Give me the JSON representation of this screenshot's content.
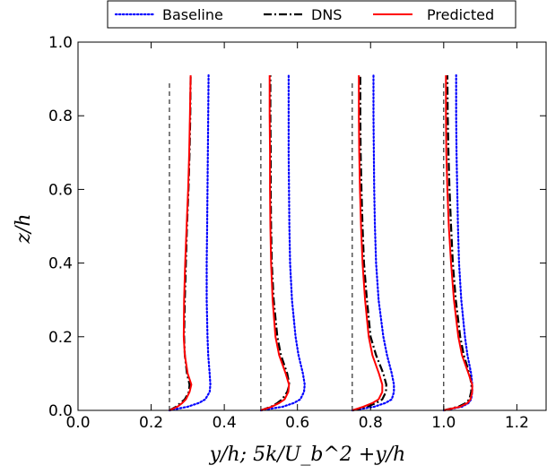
{
  "chart_data": {
    "type": "line",
    "xlabel": "y/h;     5k/U_b^2   +y/h",
    "ylabel": "z/h",
    "xlim": [
      0.0,
      1.28
    ],
    "ylim": [
      0.0,
      1.0
    ],
    "xticks": [
      "0.0",
      "0.2",
      "0.4",
      "0.6",
      "0.8",
      "1.0",
      "1.2"
    ],
    "yticks": [
      "0.0",
      "0.2",
      "0.4",
      "0.6",
      "0.8",
      "1.0"
    ],
    "legend": {
      "placement": "top",
      "entries": [
        {
          "label": "Baseline",
          "color": "#0000ff",
          "style": "dotted"
        },
        {
          "label": "DNS",
          "color": "#000000",
          "style": "dashdot"
        },
        {
          "label": "Predicted",
          "color": "#ff0000",
          "style": "solid"
        }
      ]
    },
    "reference_lines": [
      0.25,
      0.5,
      0.75,
      1.0
    ],
    "z": [
      0.0,
      0.01,
      0.02,
      0.03,
      0.05,
      0.07,
      0.1,
      0.15,
      0.2,
      0.3,
      0.4,
      0.5,
      0.6,
      0.7,
      0.8,
      0.91
    ],
    "profiles": [
      {
        "station": 0.25,
        "Baseline": [
          0.25,
          0.3,
          0.33,
          0.348,
          0.36,
          0.362,
          0.36,
          0.356,
          0.354,
          0.352,
          0.352,
          0.353,
          0.354,
          0.355,
          0.356,
          0.357
        ],
        "DNS": [
          0.25,
          0.268,
          0.28,
          0.292,
          0.303,
          0.305,
          0.298,
          0.292,
          0.29,
          0.292,
          0.295,
          0.298,
          0.302,
          0.305,
          0.307,
          0.308
        ],
        "Predicted": [
          0.25,
          0.272,
          0.285,
          0.295,
          0.305,
          0.31,
          0.3,
          0.292,
          0.289,
          0.29,
          0.293,
          0.297,
          0.301,
          0.304,
          0.306,
          0.308
        ]
      },
      {
        "station": 0.5,
        "Baseline": [
          0.5,
          0.56,
          0.59,
          0.608,
          0.618,
          0.62,
          0.615,
          0.603,
          0.595,
          0.585,
          0.58,
          0.578,
          0.577,
          0.576,
          0.576,
          0.576
        ],
        "DNS": [
          0.5,
          0.528,
          0.545,
          0.558,
          0.572,
          0.578,
          0.572,
          0.555,
          0.545,
          0.535,
          0.53,
          0.528,
          0.527,
          0.527,
          0.526,
          0.526
        ],
        "Predicted": [
          0.5,
          0.53,
          0.55,
          0.565,
          0.575,
          0.577,
          0.568,
          0.55,
          0.54,
          0.532,
          0.528,
          0.526,
          0.525,
          0.525,
          0.524,
          0.524
        ]
      },
      {
        "station": 0.75,
        "Baseline": [
          0.75,
          0.81,
          0.84,
          0.858,
          0.864,
          0.864,
          0.858,
          0.845,
          0.835,
          0.822,
          0.815,
          0.812,
          0.81,
          0.809,
          0.808,
          0.808
        ],
        "DNS": [
          0.75,
          0.79,
          0.815,
          0.832,
          0.842,
          0.843,
          0.835,
          0.815,
          0.8,
          0.79,
          0.782,
          0.778,
          0.775,
          0.773,
          0.772,
          0.772
        ],
        "Predicted": [
          0.75,
          0.78,
          0.805,
          0.822,
          0.832,
          0.832,
          0.823,
          0.805,
          0.795,
          0.785,
          0.778,
          0.774,
          0.771,
          0.769,
          0.768,
          0.768
        ]
      },
      {
        "station": 1.0,
        "Baseline": [
          1.0,
          1.05,
          1.068,
          1.075,
          1.078,
          1.078,
          1.075,
          1.065,
          1.058,
          1.048,
          1.042,
          1.039,
          1.037,
          1.035,
          1.034,
          1.034
        ],
        "DNS": [
          1.0,
          1.04,
          1.06,
          1.07,
          1.075,
          1.076,
          1.07,
          1.055,
          1.045,
          1.033,
          1.025,
          1.02,
          1.016,
          1.013,
          1.011,
          1.01
        ],
        "Predicted": [
          1.0,
          1.045,
          1.065,
          1.073,
          1.078,
          1.078,
          1.068,
          1.05,
          1.04,
          1.028,
          1.02,
          1.014,
          1.01,
          1.007,
          1.006,
          1.006
        ]
      }
    ]
  }
}
